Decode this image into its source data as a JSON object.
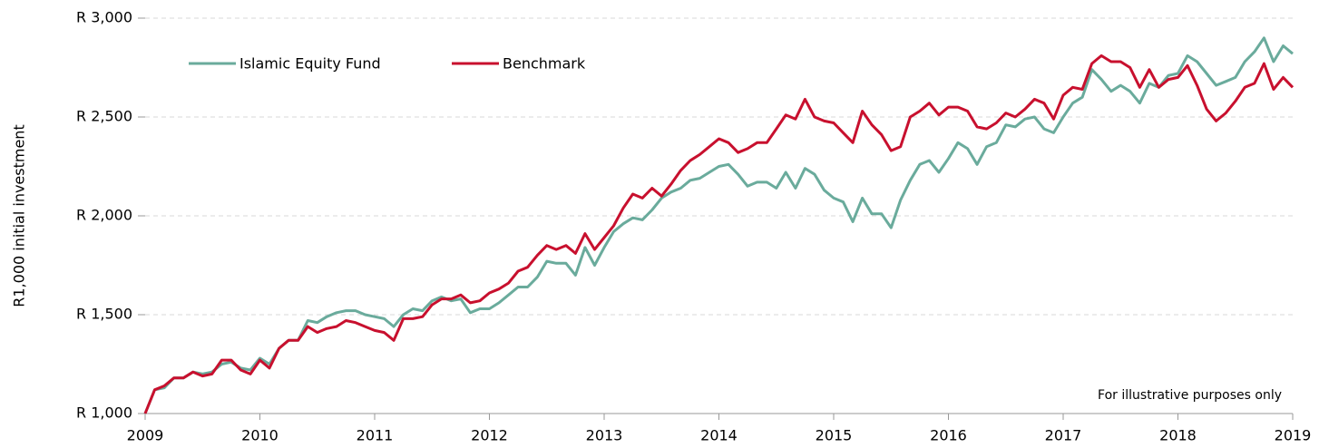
{
  "chart_data": {
    "type": "line",
    "y_label": "R1,000 initial investment",
    "annotation": "For illustrative purposes only",
    "legend": "upper left",
    "grid": true,
    "xlim": [
      2009,
      2019
    ],
    "xticks": [
      2009,
      2010,
      2011,
      2012,
      2013,
      2014,
      2015,
      2016,
      2017,
      2018,
      2019
    ],
    "ylim": [
      1000,
      3000
    ],
    "yticks": [
      {
        "value": 1000,
        "label": "R 1,000"
      },
      {
        "value": 1500,
        "label": "R 1,500"
      },
      {
        "value": 2000,
        "label": "R 2,000"
      },
      {
        "value": 2500,
        "label": "R 2,500"
      },
      {
        "value": 3000,
        "label": "R 3,000"
      }
    ],
    "x": [
      2009,
      2009.083,
      2009.167,
      2009.25,
      2009.333,
      2009.417,
      2009.5,
      2009.583,
      2009.667,
      2009.75,
      2009.833,
      2009.917,
      2010,
      2010.083,
      2010.167,
      2010.25,
      2010.333,
      2010.417,
      2010.5,
      2010.583,
      2010.667,
      2010.75,
      2010.833,
      2010.917,
      2011,
      2011.083,
      2011.167,
      2011.25,
      2011.333,
      2011.417,
      2011.5,
      2011.583,
      2011.667,
      2011.75,
      2011.833,
      2011.917,
      2012,
      2012.083,
      2012.167,
      2012.25,
      2012.333,
      2012.417,
      2012.5,
      2012.583,
      2012.667,
      2012.75,
      2012.833,
      2012.917,
      2013,
      2013.083,
      2013.167,
      2013.25,
      2013.333,
      2013.417,
      2013.5,
      2013.583,
      2013.667,
      2013.75,
      2013.833,
      2013.917,
      2014,
      2014.083,
      2014.167,
      2014.25,
      2014.333,
      2014.417,
      2014.5,
      2014.583,
      2014.667,
      2014.75,
      2014.833,
      2014.917,
      2015,
      2015.083,
      2015.167,
      2015.25,
      2015.333,
      2015.417,
      2015.5,
      2015.583,
      2015.667,
      2015.75,
      2015.833,
      2015.917,
      2016,
      2016.083,
      2016.167,
      2016.25,
      2016.333,
      2016.417,
      2016.5,
      2016.583,
      2016.667,
      2016.75,
      2016.833,
      2016.917,
      2017,
      2017.083,
      2017.167,
      2017.25,
      2017.333,
      2017.417,
      2017.5,
      2017.583,
      2017.667,
      2017.75,
      2017.833,
      2017.917,
      2018,
      2018.083,
      2018.167,
      2018.25,
      2018.333,
      2018.417,
      2018.5,
      2018.583,
      2018.667,
      2018.75,
      2018.833,
      2018.917,
      2019
    ],
    "series": [
      {
        "name": "Islamic Equity Fund",
        "color": "#6aab9c",
        "values": [
          1000,
          1120,
          1130,
          1180,
          1180,
          1210,
          1200,
          1210,
          1250,
          1260,
          1230,
          1220,
          1280,
          1250,
          1330,
          1370,
          1370,
          1470,
          1460,
          1490,
          1510,
          1520,
          1520,
          1500,
          1490,
          1480,
          1440,
          1500,
          1530,
          1520,
          1570,
          1590,
          1570,
          1580,
          1510,
          1530,
          1530,
          1560,
          1600,
          1640,
          1640,
          1690,
          1770,
          1760,
          1760,
          1700,
          1840,
          1750,
          1840,
          1920,
          1960,
          1990,
          1980,
          2030,
          2090,
          2120,
          2140,
          2180,
          2190,
          2220,
          2250,
          2260,
          2210,
          2150,
          2170,
          2170,
          2140,
          2220,
          2140,
          2240,
          2210,
          2130,
          2090,
          2070,
          1970,
          2090,
          2010,
          2010,
          1940,
          2080,
          2180,
          2260,
          2280,
          2220,
          2290,
          2370,
          2340,
          2260,
          2350,
          2370,
          2460,
          2450,
          2490,
          2500,
          2440,
          2420,
          2500,
          2570,
          2600,
          2740,
          2690,
          2630,
          2660,
          2630,
          2570,
          2670,
          2650,
          2710,
          2720,
          2810,
          2780,
          2720,
          2660,
          2680,
          2700,
          2780,
          2830,
          2900,
          2780,
          2860,
          2820
        ]
      },
      {
        "name": "Benchmark",
        "color": "#c8102e",
        "values": [
          1000,
          1120,
          1140,
          1180,
          1180,
          1210,
          1190,
          1200,
          1270,
          1270,
          1220,
          1200,
          1270,
          1230,
          1330,
          1370,
          1370,
          1440,
          1410,
          1430,
          1440,
          1470,
          1460,
          1440,
          1420,
          1410,
          1370,
          1480,
          1480,
          1490,
          1550,
          1580,
          1580,
          1600,
          1560,
          1570,
          1610,
          1630,
          1660,
          1720,
          1740,
          1800,
          1850,
          1830,
          1850,
          1810,
          1910,
          1830,
          1890,
          1950,
          2040,
          2110,
          2090,
          2140,
          2100,
          2160,
          2230,
          2280,
          2310,
          2350,
          2390,
          2370,
          2320,
          2340,
          2370,
          2370,
          2440,
          2510,
          2490,
          2590,
          2500,
          2480,
          2470,
          2420,
          2370,
          2530,
          2460,
          2410,
          2330,
          2350,
          2500,
          2530,
          2570,
          2510,
          2550,
          2550,
          2530,
          2450,
          2440,
          2470,
          2520,
          2500,
          2540,
          2590,
          2570,
          2490,
          2610,
          2650,
          2640,
          2770,
          2810,
          2780,
          2780,
          2750,
          2650,
          2740,
          2650,
          2690,
          2700,
          2760,
          2660,
          2540,
          2480,
          2520,
          2580,
          2650,
          2670,
          2770,
          2640,
          2700,
          2650
        ]
      }
    ]
  }
}
